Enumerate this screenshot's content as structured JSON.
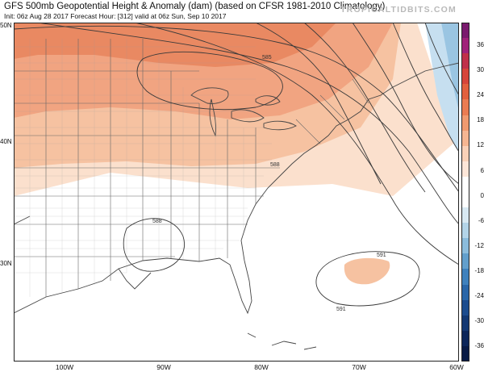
{
  "header": {
    "title": "GFS 500mb Geopotential Height & Anomaly (dam) (based on CFSR 1981-2010 Climatology)",
    "subtitle": "Init: 06z Aug 28 2017   Forecast Hour: [312]   valid at 06z Sun, Sep 10 2017",
    "brand": "TROPICALTIDBITS.COM"
  },
  "map": {
    "lat_labels": [
      "50N",
      "40N",
      "30N"
    ],
    "lon_labels": [
      "100W",
      "90W",
      "80W",
      "70W",
      "60W"
    ],
    "contour_labels": [
      "585",
      "588",
      "588",
      "591",
      "591"
    ],
    "colors": {
      "ocean": "#ffffff",
      "land": "#ffffff",
      "borders": "#555555",
      "contours": "#3a3a3a"
    }
  },
  "colorbar": {
    "ticks": [
      "36",
      "30",
      "24",
      "18",
      "12",
      "6",
      "0",
      "-6",
      "-12",
      "-18",
      "-24",
      "-30",
      "-36"
    ],
    "colors": [
      "#7a1a6e",
      "#a0227a",
      "#c0304a",
      "#d6453a",
      "#e2603e",
      "#ea7c52",
      "#f09a6f",
      "#f5b692",
      "#f9d1b8",
      "#fde6d8",
      "#ffffff",
      "#ffffff",
      "#d8e9f3",
      "#b3d4e8",
      "#8bbcdc",
      "#629fcc",
      "#3f81bd",
      "#2a66a8",
      "#1c4c8e",
      "#133873",
      "#0c265a",
      "#081a45"
    ]
  }
}
